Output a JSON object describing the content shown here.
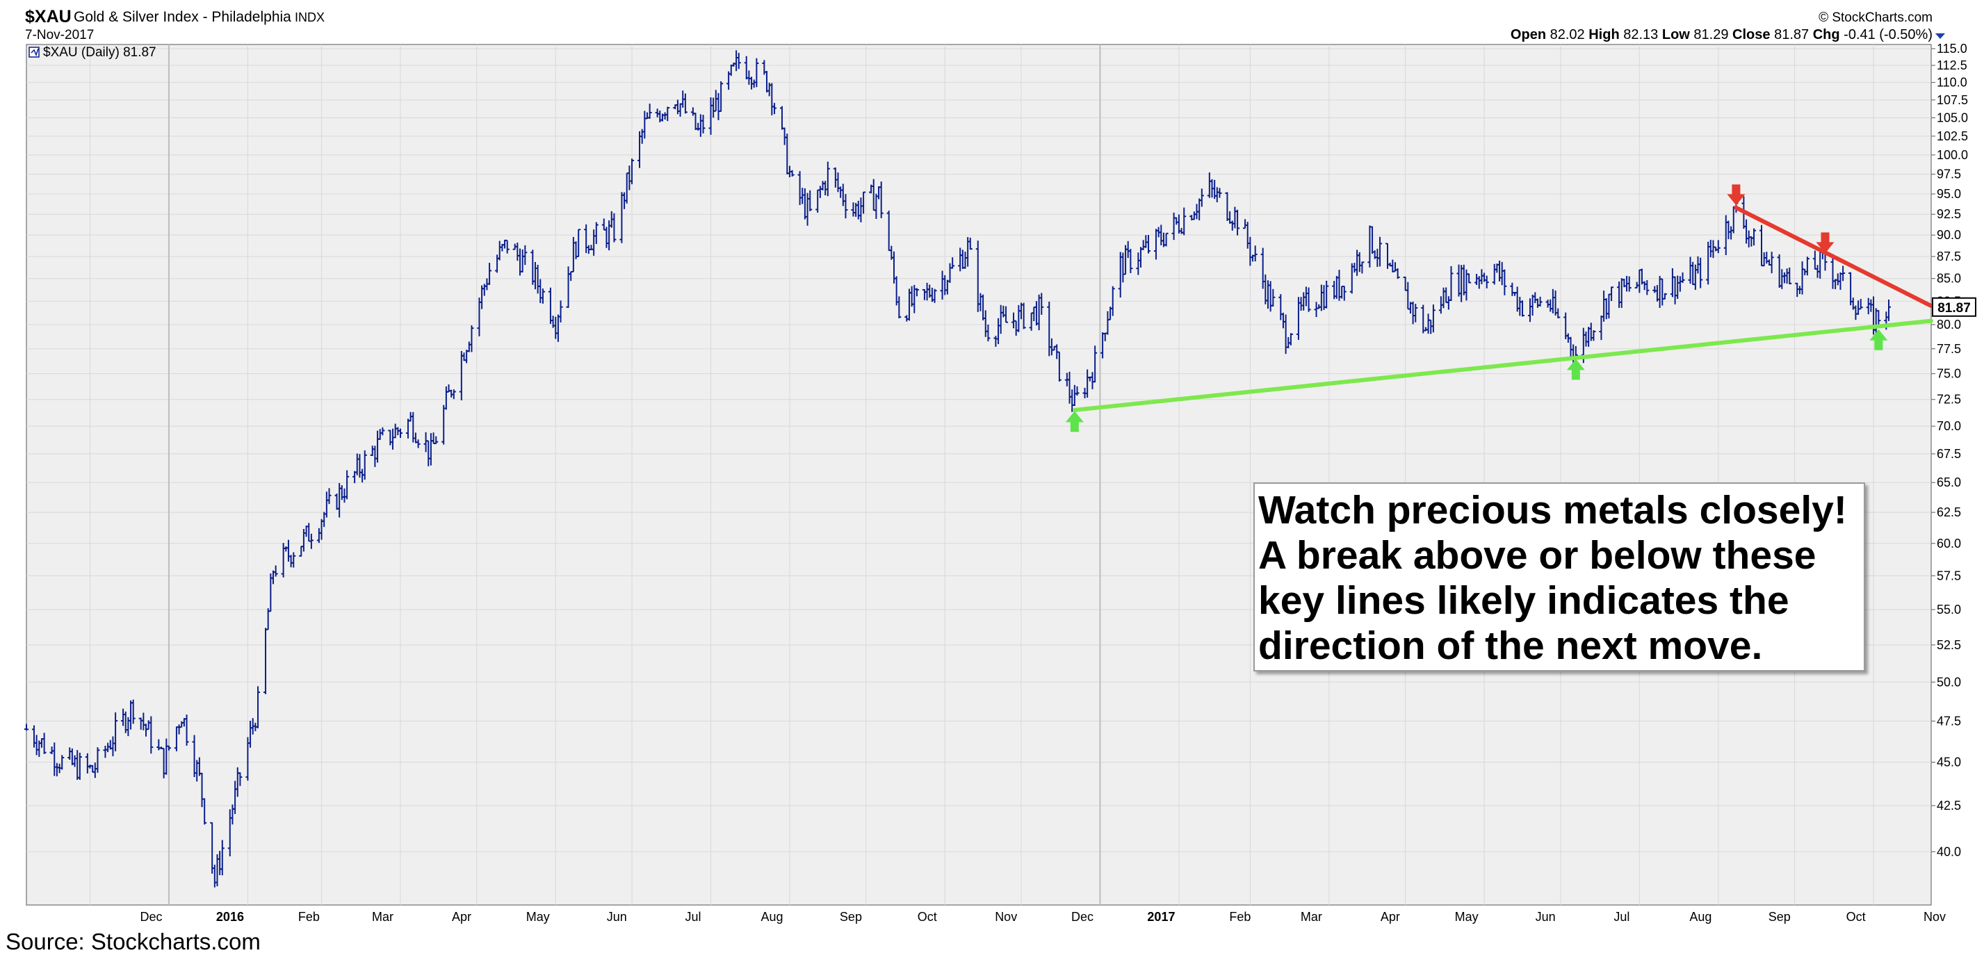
{
  "header": {
    "symbol": "$XAU",
    "name": "Gold & Silver Index - Philadelphia",
    "exchange": "INDX",
    "date": "7-Nov-2017",
    "credit": "© StockCharts.com",
    "quote": {
      "open_label": "Open",
      "open": "82.02",
      "high_label": "High",
      "high": "82.13",
      "low_label": "Low",
      "low": "81.29",
      "close_label": "Close",
      "close": "81.87",
      "chg_label": "Chg",
      "chg": "-0.41 (-0.50%)"
    }
  },
  "legend": {
    "text": "$XAU (Daily) 81.87"
  },
  "last_price_tag": "81.87",
  "annotation": "Watch precious metals closely! A break above or below these key lines likely indicates the direction of the next move.",
  "source": "Source: Stockcharts.com",
  "colors": {
    "price": "#0b1f8a",
    "resistance": "#e53a2e",
    "support": "#7de84e",
    "down_arrow": "#e53a2e",
    "up_arrow": "#5fe34a",
    "plot_bg": "#efefef",
    "grid": "#d8d8d8"
  },
  "chart_data": {
    "type": "line",
    "style": "ohlc-bars",
    "title": "$XAU Gold & Silver Index - Philadelphia INDX",
    "xlabel": "",
    "ylabel": "",
    "x_range": [
      "2015-11-06",
      "2017-11-07"
    ],
    "ylim": [
      37.5,
      115.0
    ],
    "y_scale": "log",
    "y_axis_position": "right",
    "grid": true,
    "y_ticks": [
      "40.0",
      "42.5",
      "45.0",
      "47.5",
      "50.0",
      "52.5",
      "55.0",
      "57.5",
      "60.0",
      "62.5",
      "65.0",
      "67.5",
      "70.0",
      "72.5",
      "75.0",
      "77.5",
      "80.0",
      "82.5",
      "85.0",
      "87.5",
      "90.0",
      "92.5",
      "95.0",
      "97.5",
      "100.0",
      "102.5",
      "105.0",
      "107.5",
      "110.0",
      "112.5",
      "115.0"
    ],
    "x_ticks": [
      {
        "label": "Dec",
        "date": "2015-12-01",
        "bold": false
      },
      {
        "label": "2016",
        "date": "2016-01-01",
        "bold": true
      },
      {
        "label": "Feb",
        "date": "2016-02-01",
        "bold": false
      },
      {
        "label": "Mar",
        "date": "2016-03-01",
        "bold": false
      },
      {
        "label": "Apr",
        "date": "2016-04-01",
        "bold": false
      },
      {
        "label": "May",
        "date": "2016-05-01",
        "bold": false
      },
      {
        "label": "Jun",
        "date": "2016-06-01",
        "bold": false
      },
      {
        "label": "Jul",
        "date": "2016-07-01",
        "bold": false
      },
      {
        "label": "Aug",
        "date": "2016-08-01",
        "bold": false
      },
      {
        "label": "Sep",
        "date": "2016-09-01",
        "bold": false
      },
      {
        "label": "Oct",
        "date": "2016-10-01",
        "bold": false
      },
      {
        "label": "Nov",
        "date": "2016-11-01",
        "bold": false
      },
      {
        "label": "Dec",
        "date": "2016-12-01",
        "bold": false
      },
      {
        "label": "2017",
        "date": "2017-01-01",
        "bold": true
      },
      {
        "label": "Feb",
        "date": "2017-02-01",
        "bold": false
      },
      {
        "label": "Mar",
        "date": "2017-03-01",
        "bold": false
      },
      {
        "label": "Apr",
        "date": "2017-04-01",
        "bold": false
      },
      {
        "label": "May",
        "date": "2017-05-01",
        "bold": false
      },
      {
        "label": "Jun",
        "date": "2017-06-01",
        "bold": false
      },
      {
        "label": "Jul",
        "date": "2017-07-01",
        "bold": false
      },
      {
        "label": "Aug",
        "date": "2017-08-01",
        "bold": false
      },
      {
        "label": "Sep",
        "date": "2017-09-01",
        "bold": false
      },
      {
        "label": "Oct",
        "date": "2017-10-01",
        "bold": false
      },
      {
        "label": "Nov",
        "date": "2017-11-01",
        "bold": false
      }
    ],
    "series": [
      {
        "name": "$XAU (Daily)",
        "points": [
          {
            "x": "2015-11-06",
            "y": 47.0
          },
          {
            "x": "2015-11-20",
            "y": 45.0
          },
          {
            "x": "2015-12-02",
            "y": 44.5
          },
          {
            "x": "2015-12-18",
            "y": 48.5
          },
          {
            "x": "2015-12-30",
            "y": 45.0
          },
          {
            "x": "2016-01-06",
            "y": 48.0
          },
          {
            "x": "2016-01-13",
            "y": 44.0
          },
          {
            "x": "2016-01-19",
            "y": 38.5
          },
          {
            "x": "2016-01-27",
            "y": 43.0
          },
          {
            "x": "2016-02-05",
            "y": 48.5
          },
          {
            "x": "2016-02-11",
            "y": 58.0
          },
          {
            "x": "2016-02-24",
            "y": 60.5
          },
          {
            "x": "2016-03-08",
            "y": 64.0
          },
          {
            "x": "2016-03-24",
            "y": 68.5
          },
          {
            "x": "2016-04-05",
            "y": 70.5
          },
          {
            "x": "2016-04-13",
            "y": 67.5
          },
          {
            "x": "2016-04-28",
            "y": 79.0
          },
          {
            "x": "2016-05-06",
            "y": 86.0
          },
          {
            "x": "2016-05-13",
            "y": 89.0
          },
          {
            "x": "2016-05-23",
            "y": 85.5
          },
          {
            "x": "2016-06-01",
            "y": 80.5
          },
          {
            "x": "2016-06-09",
            "y": 89.0
          },
          {
            "x": "2016-06-24",
            "y": 90.5
          },
          {
            "x": "2016-07-06",
            "y": 104.0
          },
          {
            "x": "2016-07-18",
            "y": 108.0
          },
          {
            "x": "2016-07-27",
            "y": 103.0
          },
          {
            "x": "2016-08-05",
            "y": 108.0
          },
          {
            "x": "2016-08-12",
            "y": 113.0
          },
          {
            "x": "2016-08-24",
            "y": 110.0
          },
          {
            "x": "2016-09-02",
            "y": 96.0
          },
          {
            "x": "2016-09-09",
            "y": 92.5
          },
          {
            "x": "2016-09-16",
            "y": 97.5
          },
          {
            "x": "2016-09-26",
            "y": 93.0
          },
          {
            "x": "2016-10-06",
            "y": 95.0
          },
          {
            "x": "2016-10-14",
            "y": 81.5
          },
          {
            "x": "2016-10-24",
            "y": 83.0
          },
          {
            "x": "2016-11-04",
            "y": 86.0
          },
          {
            "x": "2016-11-10",
            "y": 88.5
          },
          {
            "x": "2016-11-17",
            "y": 79.5
          },
          {
            "x": "2016-11-28",
            "y": 80.5
          },
          {
            "x": "2016-12-08",
            "y": 81.5
          },
          {
            "x": "2016-12-15",
            "y": 76.0
          },
          {
            "x": "2016-12-22",
            "y": 72.0
          },
          {
            "x": "2016-12-30",
            "y": 76.0
          },
          {
            "x": "2017-01-09",
            "y": 86.5
          },
          {
            "x": "2017-01-20",
            "y": 88.5
          },
          {
            "x": "2017-02-01",
            "y": 91.5
          },
          {
            "x": "2017-02-13",
            "y": 95.5
          },
          {
            "x": "2017-02-24",
            "y": 92.0
          },
          {
            "x": "2017-03-07",
            "y": 84.0
          },
          {
            "x": "2017-03-15",
            "y": 79.0
          },
          {
            "x": "2017-03-24",
            "y": 82.5
          },
          {
            "x": "2017-04-05",
            "y": 84.0
          },
          {
            "x": "2017-04-17",
            "y": 89.5
          },
          {
            "x": "2017-04-26",
            "y": 85.0
          },
          {
            "x": "2017-05-09",
            "y": 79.5
          },
          {
            "x": "2017-05-19",
            "y": 84.5
          },
          {
            "x": "2017-06-05",
            "y": 86.0
          },
          {
            "x": "2017-06-16",
            "y": 82.0
          },
          {
            "x": "2017-06-26",
            "y": 82.5
          },
          {
            "x": "2017-07-07",
            "y": 77.0
          },
          {
            "x": "2017-07-20",
            "y": 83.0
          },
          {
            "x": "2017-08-01",
            "y": 84.5
          },
          {
            "x": "2017-08-11",
            "y": 84.0
          },
          {
            "x": "2017-08-24",
            "y": 85.5
          },
          {
            "x": "2017-09-01",
            "y": 89.5
          },
          {
            "x": "2017-09-08",
            "y": 93.0
          },
          {
            "x": "2017-09-18",
            "y": 87.5
          },
          {
            "x": "2017-09-29",
            "y": 84.5
          },
          {
            "x": "2017-10-13",
            "y": 87.0
          },
          {
            "x": "2017-10-26",
            "y": 82.0
          },
          {
            "x": "2017-11-01",
            "y": 80.5
          },
          {
            "x": "2017-11-07",
            "y": 81.87
          }
        ]
      }
    ],
    "trendlines": [
      {
        "kind": "support",
        "from": {
          "x": "2016-12-22",
          "y": 71.5
        },
        "to": {
          "x": "2017-11-24",
          "y": 80.4
        }
      },
      {
        "kind": "resistance",
        "from": {
          "x": "2017-09-08",
          "y": 93.3
        },
        "to": {
          "x": "2017-11-24",
          "y": 82.0
        }
      }
    ],
    "markers": [
      {
        "type": "up-arrow",
        "x": "2016-12-22",
        "y": 70.5
      },
      {
        "type": "up-arrow",
        "x": "2017-07-07",
        "y": 75.5
      },
      {
        "type": "up-arrow",
        "x": "2017-11-03",
        "y": 78.5
      },
      {
        "type": "down-arrow",
        "x": "2017-09-08",
        "y": 94.8
      },
      {
        "type": "down-arrow",
        "x": "2017-10-13",
        "y": 89.0
      }
    ]
  }
}
